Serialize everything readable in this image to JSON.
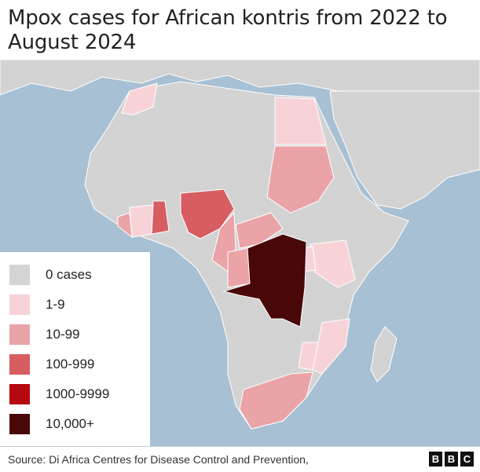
{
  "title": "Mpox cases for African kontris from 2022 to August 2024",
  "colors": {
    "sea": "#a8c0d3",
    "land_other": "#d3d3d3",
    "cat_0": "#d4d4d4",
    "cat_1_9": "#f7d3d7",
    "cat_10_99": "#eaa3a6",
    "cat_100_999": "#d75d61",
    "cat_1000_9999": "#b5090f",
    "cat_10000": "#4a0708"
  },
  "legend": {
    "items": [
      {
        "label": "0 cases",
        "color": "#d4d4d4"
      },
      {
        "label": "1-9",
        "color": "#f7d3d7"
      },
      {
        "label": "10-99",
        "color": "#eaa3a6"
      },
      {
        "label": "100-999",
        "color": "#d75d61"
      },
      {
        "label": "1000-9999",
        "color": "#b5090f"
      },
      {
        "label": "10,000+",
        "color": "#4a0708"
      }
    ]
  },
  "footer": {
    "source": "Source: Di Africa Centres for Disease Control and Prevention,",
    "logo": [
      "B",
      "B",
      "C"
    ]
  }
}
